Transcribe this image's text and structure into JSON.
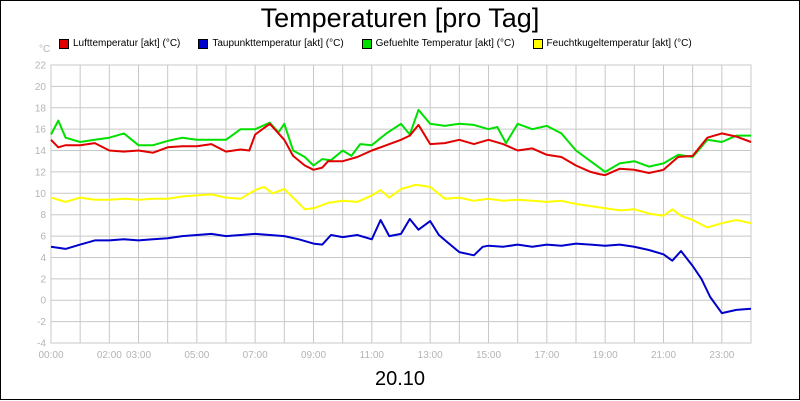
{
  "chart_data": {
    "type": "line",
    "title": "Temperaturen [pro Tag]",
    "xlabel": "20.10",
    "ylabel": "°C",
    "ylim": [
      -4,
      22
    ],
    "xlim": [
      0,
      24
    ],
    "grid": true,
    "legend_position": "top",
    "y_ticks": [
      22,
      20,
      18,
      16,
      14,
      12,
      10,
      8,
      6,
      4,
      2,
      0,
      -2,
      -4
    ],
    "x_ticks": [
      {
        "label": "00:00",
        "value": 0
      },
      {
        "label": "02:00",
        "value": 2
      },
      {
        "label": "03:00",
        "value": 3
      },
      {
        "label": "05:00",
        "value": 5
      },
      {
        "label": "07:00",
        "value": 7
      },
      {
        "label": "09:00",
        "value": 9
      },
      {
        "label": "11:00",
        "value": 11
      },
      {
        "label": "13:00",
        "value": 13
      },
      {
        "label": "15:00",
        "value": 15
      },
      {
        "label": "17:00",
        "value": 17
      },
      {
        "label": "19:00",
        "value": 19
      },
      {
        "label": "21:00",
        "value": 21
      },
      {
        "label": "23:00",
        "value": 23
      }
    ],
    "series": [
      {
        "name": "Lufttemperatur [akt] (°C)",
        "color": "#e00000",
        "x": [
          0,
          0.25,
          0.5,
          1,
          1.5,
          2,
          2.5,
          3,
          3.5,
          4,
          4.5,
          5,
          5.5,
          6,
          6.5,
          6.8,
          7,
          7.5,
          8,
          8.3,
          8.7,
          9,
          9.3,
          9.5,
          10,
          10.5,
          11,
          11.5,
          12,
          12.3,
          12.6,
          13,
          13.5,
          14,
          14.5,
          15,
          15.5,
          16,
          16.5,
          17,
          17.5,
          18,
          18.5,
          18.8,
          19,
          19.5,
          20,
          20.5,
          21,
          21.5,
          22,
          22.5,
          23,
          23.5,
          24
        ],
        "values": [
          15.0,
          14.3,
          14.5,
          14.5,
          14.7,
          14.0,
          13.9,
          14.0,
          13.8,
          14.3,
          14.4,
          14.4,
          14.6,
          13.9,
          14.1,
          14.0,
          15.5,
          16.5,
          15.0,
          13.5,
          12.6,
          12.2,
          12.4,
          13.0,
          13.0,
          13.4,
          14.0,
          14.5,
          15.0,
          15.4,
          16.4,
          14.6,
          14.7,
          15.0,
          14.6,
          15.0,
          14.6,
          14.0,
          14.2,
          13.6,
          13.4,
          12.6,
          12.0,
          11.8,
          11.7,
          12.3,
          12.2,
          11.9,
          12.2,
          13.4,
          13.5,
          15.2,
          15.6,
          15.3,
          14.8
        ]
      },
      {
        "name": "Taupunkttemperatur [akt] (°C)",
        "color": "#0000cc",
        "x": [
          0,
          0.5,
          1,
          1.5,
          2,
          2.5,
          3,
          3.5,
          4,
          4.5,
          5,
          5.5,
          6,
          6.5,
          7,
          7.5,
          8,
          8.5,
          9,
          9.3,
          9.6,
          10,
          10.5,
          11,
          11.3,
          11.6,
          12,
          12.3,
          12.6,
          13,
          13.3,
          13.6,
          14,
          14.5,
          14.8,
          15,
          15.5,
          16,
          16.5,
          17,
          17.5,
          18,
          18.5,
          19,
          19.5,
          20,
          20.5,
          21,
          21.3,
          21.6,
          22,
          22.3,
          22.6,
          23,
          23.5,
          24
        ],
        "values": [
          5.0,
          4.8,
          5.2,
          5.6,
          5.6,
          5.7,
          5.6,
          5.7,
          5.8,
          6.0,
          6.1,
          6.2,
          6.0,
          6.1,
          6.2,
          6.1,
          6.0,
          5.7,
          5.3,
          5.2,
          6.1,
          5.9,
          6.1,
          5.7,
          7.5,
          6.0,
          6.2,
          7.6,
          6.6,
          7.4,
          6.1,
          5.4,
          4.5,
          4.2,
          5.0,
          5.1,
          5.0,
          5.2,
          5.0,
          5.2,
          5.1,
          5.3,
          5.2,
          5.1,
          5.2,
          5.0,
          4.7,
          4.3,
          3.7,
          4.6,
          3.2,
          2.0,
          0.3,
          -1.2,
          -0.9,
          -0.8
        ]
      },
      {
        "name": "Gefuehlte Temperatur [akt] (°C)",
        "color": "#00e000",
        "x": [
          0,
          0.25,
          0.5,
          1,
          1.5,
          2,
          2.5,
          3,
          3.5,
          4,
          4.5,
          5,
          5.5,
          6,
          6.5,
          7,
          7.5,
          7.8,
          8,
          8.3,
          8.7,
          9,
          9.3,
          9.6,
          10,
          10.3,
          10.6,
          11,
          11.5,
          12,
          12.3,
          12.6,
          13,
          13.5,
          14,
          14.5,
          15,
          15.3,
          15.6,
          16,
          16.5,
          17,
          17.5,
          18,
          18.5,
          19,
          19.5,
          20,
          20.5,
          21,
          21.5,
          22,
          22.5,
          23,
          23.5,
          24
        ],
        "values": [
          15.5,
          16.8,
          15.2,
          14.8,
          15.0,
          15.2,
          15.6,
          14.5,
          14.5,
          14.9,
          15.2,
          15.0,
          15.0,
          15.0,
          16.0,
          16.0,
          16.6,
          15.7,
          16.5,
          14.0,
          13.4,
          12.6,
          13.2,
          13.1,
          14.0,
          13.5,
          14.6,
          14.5,
          15.6,
          16.5,
          15.5,
          17.8,
          16.5,
          16.3,
          16.5,
          16.4,
          16.0,
          16.2,
          14.7,
          16.5,
          16.0,
          16.3,
          15.6,
          14.0,
          13.0,
          12.0,
          12.8,
          13.0,
          12.5,
          12.8,
          13.6,
          13.4,
          15.0,
          14.8,
          15.4,
          15.4
        ]
      },
      {
        "name": "Feuchtkugeltemperatur [akt] (°C)",
        "color": "#ffff00",
        "x": [
          0,
          0.5,
          1,
          1.5,
          2,
          2.5,
          3,
          3.5,
          4,
          4.5,
          5,
          5.5,
          6,
          6.5,
          7,
          7.3,
          7.6,
          8,
          8.3,
          8.7,
          9,
          9.5,
          10,
          10.5,
          11,
          11.3,
          11.6,
          12,
          12.5,
          13,
          13.5,
          14,
          14.5,
          15,
          15.5,
          16,
          16.5,
          17,
          17.5,
          18,
          18.5,
          19,
          19.5,
          20,
          20.5,
          21,
          21.3,
          21.6,
          22,
          22.5,
          23,
          23.5,
          24
        ],
        "values": [
          9.6,
          9.2,
          9.6,
          9.4,
          9.4,
          9.5,
          9.4,
          9.5,
          9.5,
          9.7,
          9.8,
          9.9,
          9.6,
          9.5,
          10.3,
          10.6,
          10.0,
          10.4,
          9.6,
          8.5,
          8.6,
          9.1,
          9.3,
          9.2,
          9.8,
          10.3,
          9.6,
          10.4,
          10.8,
          10.6,
          9.5,
          9.6,
          9.3,
          9.5,
          9.3,
          9.4,
          9.3,
          9.2,
          9.3,
          9.0,
          8.8,
          8.6,
          8.4,
          8.5,
          8.1,
          7.9,
          8.5,
          7.9,
          7.5,
          6.8,
          7.2,
          7.5,
          7.2
        ]
      }
    ]
  }
}
